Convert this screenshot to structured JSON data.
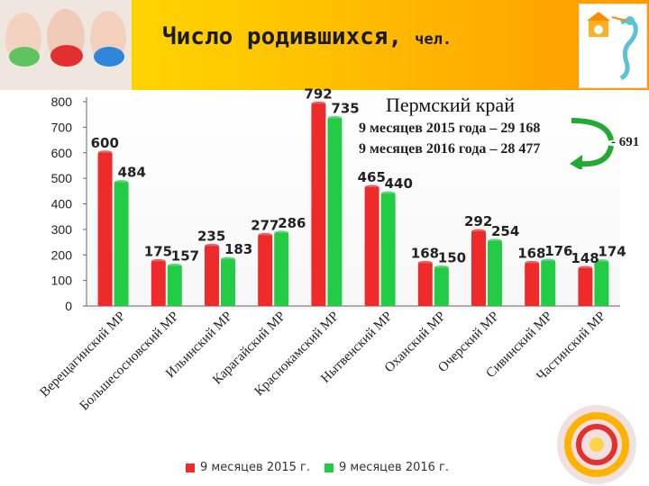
{
  "header": {
    "title": "Число родившихся,",
    "title_unit": "чел."
  },
  "annotations": {
    "region": "Пермский край",
    "summary_2015": "9 месяцев 2015 года – 29 168",
    "summary_2016": "9 месяцев 2016 года – 28 477",
    "difference": "- 691"
  },
  "colors": {
    "series_2015": "#ee2a2a",
    "series_2016": "#22cc44",
    "header_accent": "#ffc400",
    "arrow": "#22aa33"
  },
  "chart_data": {
    "type": "bar",
    "title": "Число родившихся, чел.",
    "categories": [
      "Верещагинский МР",
      "Большесосновский МР",
      "Ильинский МР",
      "Карагайский МР",
      "Краснокамский МР",
      "Нытвенский МР",
      "Оханский МР",
      "Очерский МР",
      "Сивинский МР",
      "Частинский МР"
    ],
    "series": [
      {
        "name": "9 месяцев 2015 г.",
        "values": [
          600,
          175,
          235,
          277,
          792,
          465,
          168,
          292,
          168,
          148
        ]
      },
      {
        "name": "9 месяцев 2016 г.",
        "values": [
          484,
          157,
          183,
          286,
          735,
          440,
          150,
          254,
          176,
          174
        ]
      }
    ],
    "data_labels": {
      "series_2015": [
        "600",
        "175",
        "235",
        "277",
        "792",
        "465",
        "168",
        "292",
        "168",
        "148"
      ],
      "series_2016": [
        "484",
        "157",
        "183",
        "286",
        "735",
        "440",
        "150",
        "254",
        "176",
        "174"
      ]
    },
    "yticks": [
      "0",
      "100",
      "200",
      "300",
      "400",
      "500",
      "600",
      "700",
      "800"
    ],
    "ylim": [
      0,
      800
    ],
    "xlabel": "",
    "ylabel": "",
    "grid": false,
    "legend_position": "bottom"
  }
}
